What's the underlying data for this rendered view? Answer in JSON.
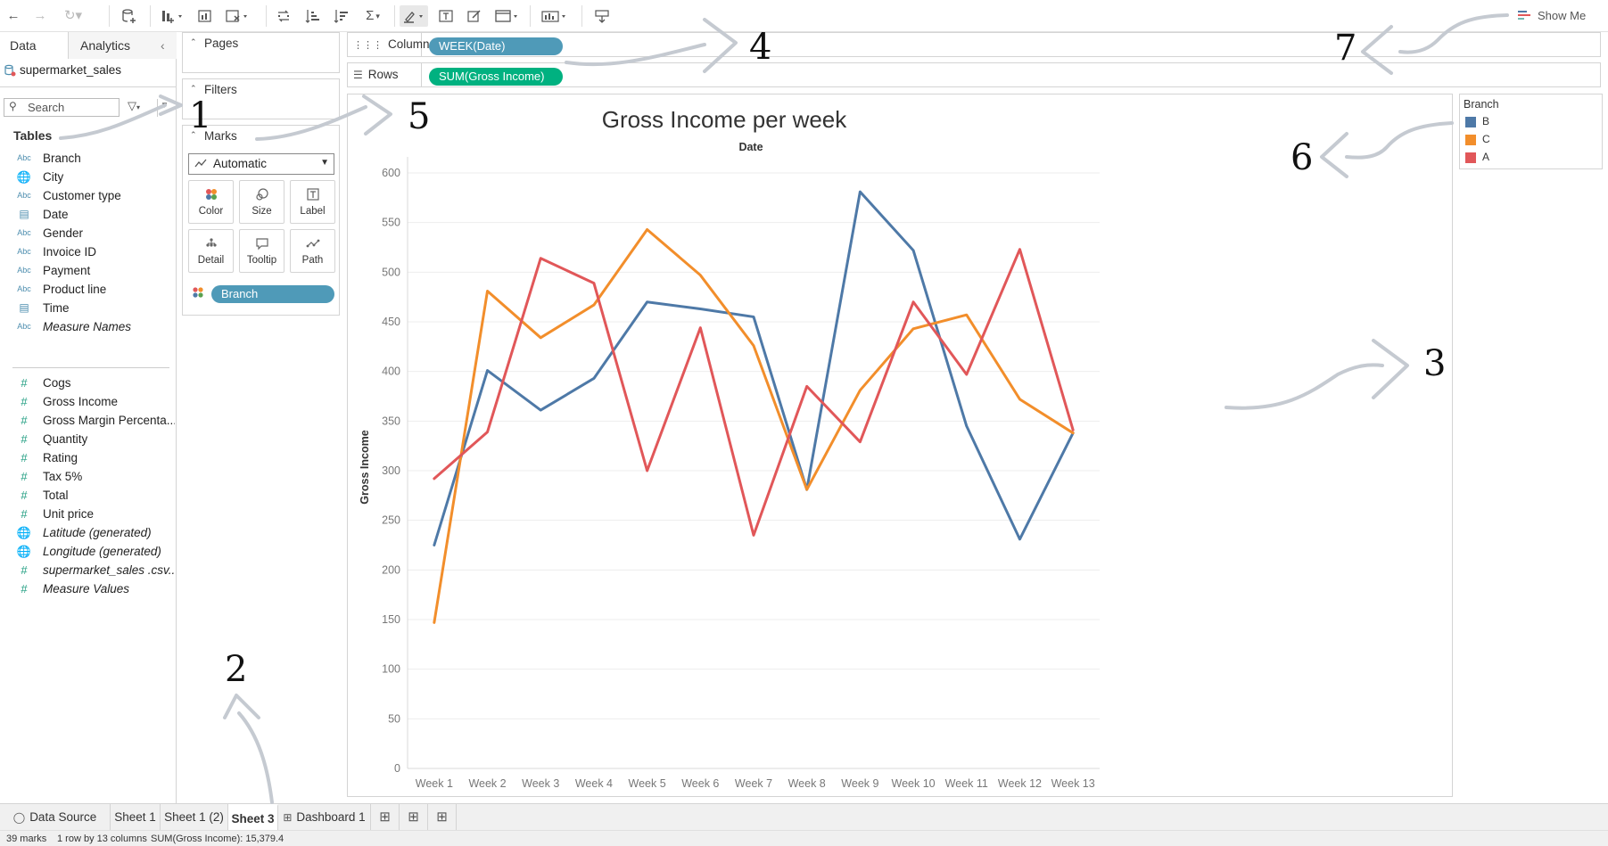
{
  "toolbar": {
    "icons": [
      "back-icon",
      "forward-icon",
      "redo-icon",
      "new-datasource-icon",
      "new-worksheet-icon",
      "duplicate-icon",
      "clear-icon",
      "swap-icon",
      "sort-asc-icon",
      "sort-desc-icon",
      "totals-icon",
      "highlight-icon",
      "label-icon",
      "format-icon",
      "fit-icon",
      "show-cards-icon",
      "present-icon"
    ],
    "show_me": "Show Me"
  },
  "left": {
    "tabs": [
      "Data",
      "Analytics"
    ],
    "datasource": "supermarket_sales",
    "search_placeholder": "Search",
    "tables_heading": "Tables",
    "dimensions": [
      {
        "name": "Branch",
        "type": "abc"
      },
      {
        "name": "City",
        "type": "geo"
      },
      {
        "name": "Customer type",
        "type": "abc"
      },
      {
        "name": "Date",
        "type": "date"
      },
      {
        "name": "Gender",
        "type": "abc"
      },
      {
        "name": "Invoice ID",
        "type": "abc"
      },
      {
        "name": "Payment",
        "type": "abc"
      },
      {
        "name": "Product line",
        "type": "abc"
      },
      {
        "name": "Time",
        "type": "datetime"
      },
      {
        "name": "Measure Names",
        "type": "abc"
      }
    ],
    "measures": [
      {
        "name": "Cogs",
        "type": "num"
      },
      {
        "name": "Gross Income",
        "type": "num"
      },
      {
        "name": "Gross Margin Percenta...",
        "type": "num"
      },
      {
        "name": "Quantity",
        "type": "num"
      },
      {
        "name": "Rating",
        "type": "num"
      },
      {
        "name": "Tax 5%",
        "type": "num"
      },
      {
        "name": "Total",
        "type": "num"
      },
      {
        "name": "Unit price",
        "type": "num"
      },
      {
        "name": "Latitude (generated)",
        "type": "geo"
      },
      {
        "name": "Longitude (generated)",
        "type": "geo"
      },
      {
        "name": "supermarket_sales .csv...",
        "type": "num"
      },
      {
        "name": "Measure Values",
        "type": "num"
      }
    ]
  },
  "cards": {
    "pages": "Pages",
    "filters": "Filters",
    "marks": "Marks",
    "mark_type": "Automatic",
    "buttons": [
      "Color",
      "Size",
      "Label",
      "Detail",
      "Tooltip",
      "Path"
    ],
    "color_pill": "Branch"
  },
  "shelves": {
    "columns_label": "Columns",
    "columns_pill": "WEEK(Date)",
    "rows_label": "Rows",
    "rows_pill": "SUM(Gross Income)"
  },
  "chart_data": {
    "type": "line",
    "title": "Gross Income per week",
    "xlabel": "Date",
    "ylabel": "Gross Income",
    "categories": [
      "Week 1",
      "Week 2",
      "Week 3",
      "Week 4",
      "Week 5",
      "Week 6",
      "Week 7",
      "Week 8",
      "Week 9",
      "Week 10",
      "Week 11",
      "Week 12",
      "Week 13"
    ],
    "ylim": [
      0,
      600
    ],
    "yticks": [
      0,
      50,
      100,
      150,
      200,
      250,
      300,
      350,
      400,
      450,
      500,
      550,
      600
    ],
    "grid": true,
    "legend_position": "right",
    "series": [
      {
        "name": "B",
        "color": "#4e79a7",
        "values": [
          225,
          401,
          361,
          393,
          470,
          463,
          455,
          281,
          581,
          522,
          345,
          231,
          338
        ]
      },
      {
        "name": "C",
        "color": "#f28e2b",
        "values": [
          147,
          481,
          434,
          467,
          543,
          497,
          426,
          281,
          381,
          443,
          457,
          372,
          338
        ]
      },
      {
        "name": "A",
        "color": "#e15759",
        "values": [
          292,
          339,
          514,
          489,
          300,
          444,
          235,
          385,
          329,
          470,
          397,
          523,
          341
        ]
      }
    ]
  },
  "legend": {
    "title": "Branch",
    "items": [
      {
        "label": "B",
        "color": "#4e79a7"
      },
      {
        "label": "C",
        "color": "#f28e2b"
      },
      {
        "label": "A",
        "color": "#e15759"
      }
    ]
  },
  "sheet_tabs": [
    "Data Source",
    "Sheet 1",
    "Sheet 1 (2)",
    "Sheet 3",
    "Dashboard 1"
  ],
  "active_sheet": "Sheet 3",
  "status": {
    "marks": "39 marks",
    "dims": "1 row by 13 columns",
    "sum": "SUM(Gross Income): 15,379.4"
  },
  "annotations": [
    "1",
    "2",
    "3",
    "4",
    "5",
    "6",
    "7"
  ]
}
